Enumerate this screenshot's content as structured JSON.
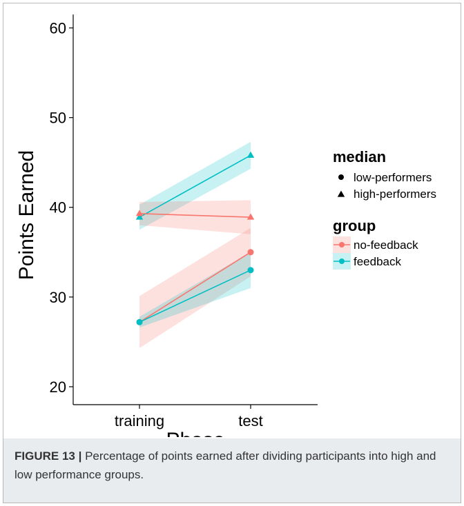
{
  "chart_data": {
    "type": "line",
    "categories": [
      "training",
      "test"
    ],
    "xlabel": "Phase",
    "ylabel": "Points Earned",
    "ylim": [
      18,
      61.5
    ],
    "yticks": [
      20,
      30,
      40,
      50,
      60
    ],
    "grid": false,
    "legend_position": "right",
    "series": [
      {
        "group": "feedback",
        "median": "high-performers",
        "values": [
          38.9,
          45.8
        ],
        "ci_low": [
          37.5,
          44.3
        ],
        "ci_high": [
          40.3,
          47.3
        ]
      },
      {
        "group": "no-feedback",
        "median": "high-performers",
        "values": [
          39.3,
          38.9
        ],
        "ci_low": [
          38.0,
          37.0
        ],
        "ci_high": [
          40.6,
          40.8
        ]
      },
      {
        "group": "no-feedback",
        "median": "low-performers",
        "values": [
          27.2,
          35.0
        ],
        "ci_low": [
          24.3,
          32.3
        ],
        "ci_high": [
          30.1,
          37.7
        ]
      },
      {
        "group": "feedback",
        "median": "low-performers",
        "values": [
          27.2,
          33.0
        ],
        "ci_low": [
          26.6,
          31.0
        ],
        "ci_high": [
          27.8,
          35.0
        ]
      }
    ],
    "legend": {
      "median": {
        "title": "median",
        "items": [
          "low-performers",
          "high-performers"
        ]
      },
      "group": {
        "title": "group",
        "items": [
          "no-feedback",
          "feedback"
        ]
      }
    },
    "colors": {
      "no-feedback": "#F8766D",
      "feedback": "#00BFC4"
    }
  },
  "caption": {
    "label": "FIGURE 13 |",
    "text": " Percentage of points earned after dividing participants into high and low performance groups."
  }
}
